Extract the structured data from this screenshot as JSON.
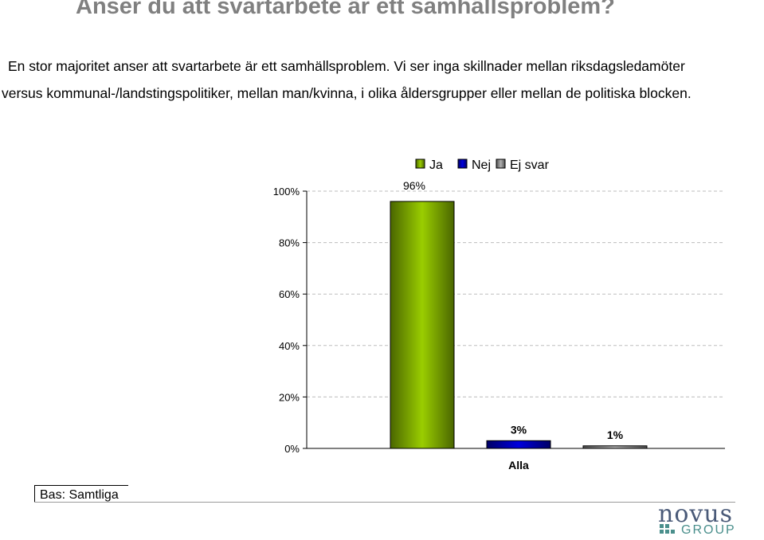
{
  "page": {
    "title": "Anser du att svartarbete är ett samhällsproblem?",
    "subtitle_line1": "En stor majoritet anser att svartarbete är ett samhällsproblem. Vi ser inga skillnader mellan riksdagsledamöter",
    "subtitle_line2": "versus kommunal-/landstingspolitiker, mellan man/kvinna, i olika åldersgrupper eller mellan de politiska blocken.",
    "base_label": "Bas: Samtliga",
    "logo": {
      "word": "novus",
      "sub": "GROUP",
      "color": "#4a5a78",
      "accent": "#4a8f8c"
    }
  },
  "chart_data": {
    "type": "bar",
    "categories": [
      "Alla"
    ],
    "series": [
      {
        "name": "Ja",
        "values": [
          96
        ],
        "label": "96%",
        "color": "#8fbf00"
      },
      {
        "name": "Nej",
        "values": [
          3
        ],
        "label": "3%",
        "color": "#0000cc"
      },
      {
        "name": "Ej svar",
        "values": [
          1
        ],
        "label": "1%",
        "color": "#a0a0a0"
      }
    ],
    "y_ticks": [
      "0%",
      "20%",
      "40%",
      "60%",
      "80%",
      "100%"
    ],
    "ylim": [
      0,
      100
    ],
    "grid": true,
    "legend": "top"
  }
}
